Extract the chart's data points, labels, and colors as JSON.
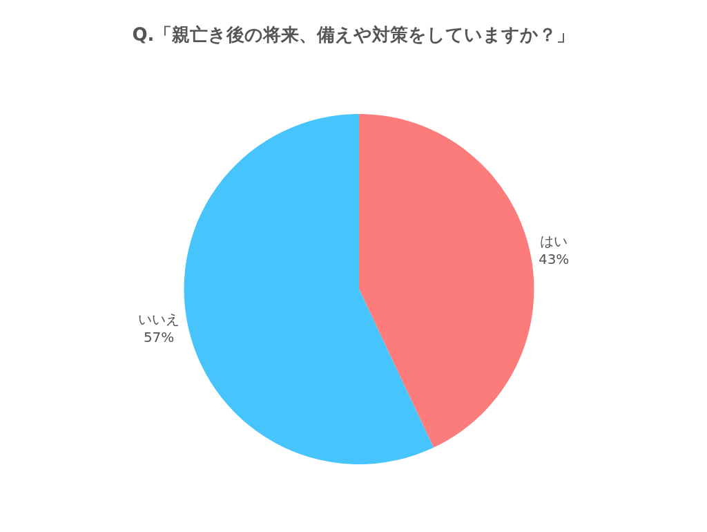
{
  "chart_data": {
    "type": "pie",
    "title": "Q.「親亡き後の将来、備えや対策をしていますか？」",
    "categories": [
      "はい",
      "いいえ"
    ],
    "values": [
      43,
      57
    ],
    "value_labels": [
      "43%",
      "57%"
    ],
    "colors": [
      "#fc7b7b",
      "#48c4fd"
    ],
    "legend": false
  }
}
